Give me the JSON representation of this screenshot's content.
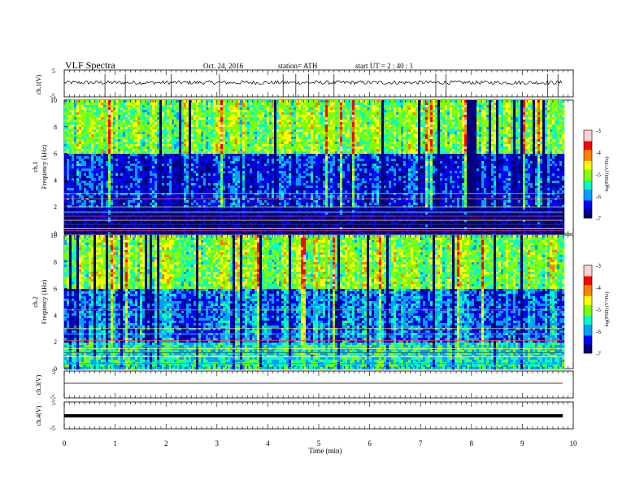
{
  "header": {
    "title": "VLF  Spectra",
    "date": "Oct. 24, 2016",
    "station": "station= ATH",
    "start": "start  UT  =   2  : 40 : 1"
  },
  "panels": {
    "ch1_wave": {
      "ylabel": "ch.1(V)",
      "ticks": [
        "5",
        "-5"
      ]
    },
    "ch1_spec": {
      "ylabel_top": "ch.1",
      "ylabel": "Frequency  (kHz)",
      "ticks": [
        "10",
        "8",
        "6",
        "4",
        "2",
        "0"
      ]
    },
    "ch2_spec": {
      "ylabel_top": "ch.2",
      "ylabel": "Frequency  (kHz)",
      "ticks": [
        "10",
        "8",
        "6",
        "4",
        "2",
        "0"
      ]
    },
    "ch3_wave": {
      "ylabel": "ch.3(V)",
      "ticks": [
        "5",
        "-5"
      ]
    },
    "ch4_wave": {
      "ylabel": "ch.4(V)",
      "ticks": [
        "5",
        "-5"
      ]
    }
  },
  "colorbar": {
    "label": "log(PSD) (V²/Hz)",
    "ticks": [
      "-3",
      "-4",
      "-5",
      "-6",
      "-7"
    ],
    "colors": [
      "#000080",
      "#0000ff",
      "#00a0ff",
      "#00ffc0",
      "#80ff00",
      "#ffff00",
      "#ff8000",
      "#ff0000",
      "#ffd0d0"
    ]
  },
  "xaxis": {
    "label": "Time  (min)",
    "ticks": [
      "0",
      "1",
      "2",
      "3",
      "4",
      "5",
      "6",
      "7",
      "8",
      "9",
      "10"
    ]
  },
  "chart_data": [
    {
      "type": "line",
      "name": "ch.1(V)",
      "x_range": [
        0,
        9.8
      ],
      "ylim": [
        -5,
        5
      ],
      "baseline": 0.3,
      "spikes_min": [
        0.8,
        1.2,
        2.1,
        3.05,
        4.3,
        4.55,
        4.8,
        5.3,
        7.3,
        7.5,
        9.5,
        9.7
      ]
    },
    {
      "type": "heatmap",
      "name": "ch.1",
      "x_range": [
        0,
        9.8
      ],
      "ylim": [
        0,
        10
      ],
      "z_range": [
        -7,
        -3
      ],
      "description_levels": {
        "above_6kHz": -5,
        "2_to_6kHz": -6.3,
        "below_2kHz": -6.8
      }
    },
    {
      "type": "heatmap",
      "name": "ch.2",
      "x_range": [
        0,
        9.8
      ],
      "ylim": [
        0,
        10
      ],
      "z_range": [
        -7,
        -3
      ],
      "description_levels": {
        "above_6kHz": -5,
        "2_to_6kHz": -6.0,
        "below_2kHz": -5.5
      }
    },
    {
      "type": "line",
      "name": "ch.3(V)",
      "x_range": [
        0,
        9.8
      ],
      "ylim": [
        -5,
        5
      ],
      "values_const": 0
    },
    {
      "type": "line",
      "name": "ch.4(V)",
      "x_range": [
        0,
        9.8
      ],
      "ylim": [
        -5,
        5
      ],
      "values_const": 0
    }
  ]
}
